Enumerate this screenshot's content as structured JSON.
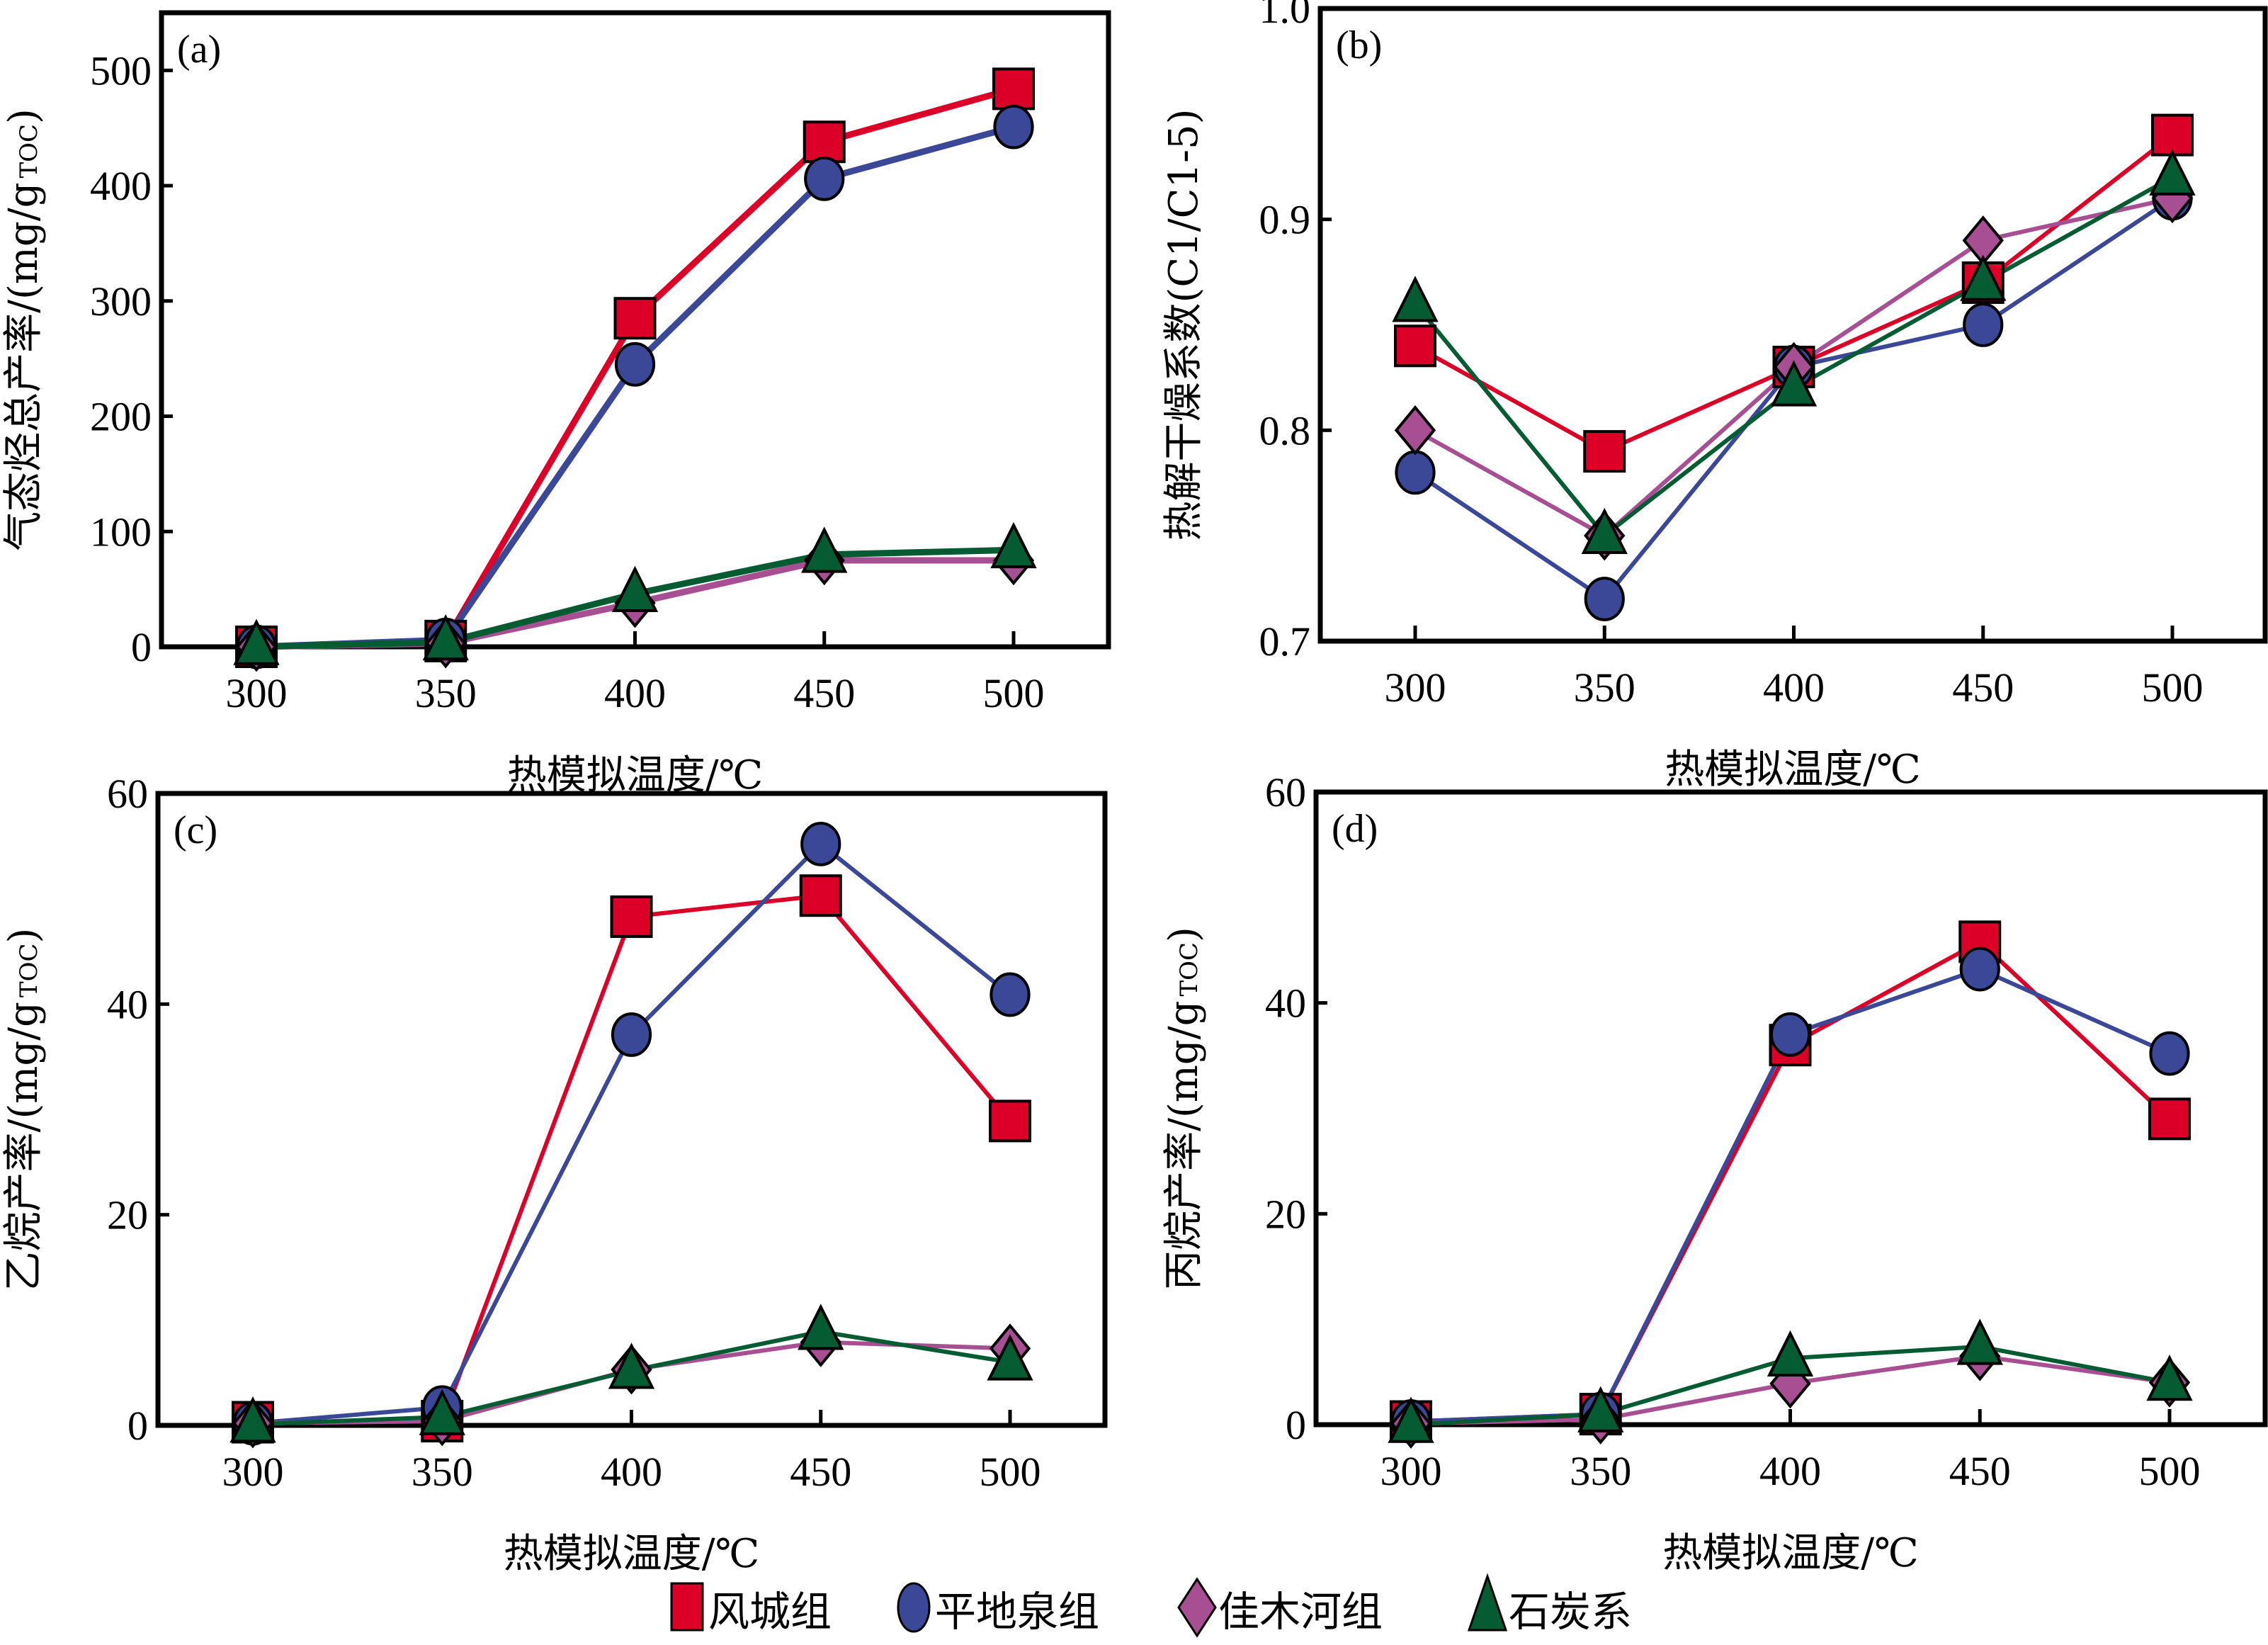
{
  "legend": [
    {
      "name": "风城组",
      "marker": "square",
      "color": "#DC0028"
    },
    {
      "name": "平地泉组",
      "marker": "circle",
      "color": "#3B4897"
    },
    {
      "name": "佳木河组",
      "marker": "diamond",
      "color": "#A84E93"
    },
    {
      "name": "石炭系",
      "marker": "triangle",
      "color": "#055C32"
    }
  ],
  "chart_data": [
    {
      "type": "line",
      "panel": "(a)",
      "title": "",
      "xlabel": "热模拟温度/℃",
      "ylabel": "气态烃总产率/(mg/g",
      "ylabel_sub": "TOC",
      "ylabel_end": ")",
      "x": [
        300,
        350,
        400,
        450,
        500
      ],
      "xticks": [
        "300",
        "350",
        "400",
        "450",
        "500"
      ],
      "ylim": [
        0,
        550
      ],
      "yticks": [
        0,
        100,
        200,
        300,
        400,
        500
      ],
      "ytick_labels": [
        "0",
        "100",
        "200",
        "300",
        "400",
        "500"
      ],
      "grid": false,
      "series": [
        {
          "name": "风城组",
          "values": [
            0,
            5,
            285,
            438,
            484
          ]
        },
        {
          "name": "平地泉组",
          "values": [
            0,
            6,
            245,
            406,
            451
          ]
        },
        {
          "name": "佳木河组",
          "values": [
            0,
            3,
            38,
            75,
            75
          ]
        },
        {
          "name": "石炭系",
          "values": [
            0,
            4,
            46,
            80,
            84
          ]
        }
      ]
    },
    {
      "type": "line",
      "panel": "(b)",
      "title": "",
      "xlabel": "热模拟温度/℃",
      "ylabel": "热解干燥系数(C1/C1-5)",
      "x": [
        300,
        350,
        400,
        450,
        500
      ],
      "xticks": [
        "300",
        "350",
        "400",
        "450",
        "500"
      ],
      "ylim": [
        0.7,
        1.0
      ],
      "yticks": [
        0.7,
        0.8,
        0.9,
        1.0
      ],
      "ytick_labels": [
        "0.7",
        "0.8",
        "0.9",
        "1.0"
      ],
      "grid": false,
      "series": [
        {
          "name": "风城组",
          "values": [
            0.84,
            0.79,
            0.83,
            0.87,
            0.94
          ]
        },
        {
          "name": "平地泉组",
          "values": [
            0.78,
            0.72,
            0.83,
            0.85,
            0.91
          ]
        },
        {
          "name": "佳木河组",
          "values": [
            0.8,
            0.75,
            0.83,
            0.89,
            0.91
          ]
        },
        {
          "name": "石炭系",
          "values": [
            0.86,
            0.75,
            0.82,
            0.87,
            0.92
          ]
        }
      ]
    },
    {
      "type": "line",
      "panel": "(c)",
      "title": "",
      "xlabel": "热模拟温度/℃",
      "ylabel": "乙烷产率/(mg/g",
      "ylabel_sub": "TOC",
      "ylabel_end": ")",
      "x": [
        300,
        350,
        400,
        450,
        500
      ],
      "xticks": [
        "300",
        "350",
        "400",
        "450",
        "500"
      ],
      "ylim": [
        0,
        60
      ],
      "yticks": [
        0,
        20,
        40,
        60
      ],
      "ytick_labels": [
        "0",
        "20",
        "40",
        "60"
      ],
      "grid": false,
      "series": [
        {
          "name": "风城组",
          "values": [
            0.3,
            0.4,
            48.3,
            50.3,
            28.9
          ]
        },
        {
          "name": "平地泉组",
          "values": [
            0.2,
            1.7,
            37.1,
            55.2,
            40.9
          ]
        },
        {
          "name": "佳木河组",
          "values": [
            0.2,
            0.4,
            5.3,
            7.9,
            7.3
          ]
        },
        {
          "name": "石炭系",
          "values": [
            0.1,
            0.8,
            5.2,
            8.9,
            6.0
          ]
        }
      ]
    },
    {
      "type": "line",
      "panel": "(d)",
      "title": "",
      "xlabel": "热模拟温度/℃",
      "ylabel": "丙烷产率/(mg/g",
      "ylabel_sub": "TOC",
      "ylabel_end": ")",
      "x": [
        300,
        350,
        400,
        450,
        500
      ],
      "xticks": [
        "300",
        "350",
        "400",
        "450",
        "500"
      ],
      "ylim": [
        0,
        60
      ],
      "yticks": [
        0,
        20,
        40,
        60
      ],
      "ytick_labels": [
        "0",
        "20",
        "40",
        "60"
      ],
      "grid": false,
      "series": [
        {
          "name": "风城组",
          "values": [
            0.3,
            1.0,
            36.0,
            45.8,
            29.0
          ]
        },
        {
          "name": "平地泉组",
          "values": [
            0.3,
            1.0,
            37.0,
            43.2,
            35.2
          ]
        },
        {
          "name": "佳木河组",
          "values": [
            0.1,
            0.5,
            3.9,
            6.5,
            4.0
          ]
        },
        {
          "name": "石炭系",
          "values": [
            0.0,
            1.0,
            6.3,
            7.4,
            4.0
          ]
        }
      ]
    }
  ]
}
